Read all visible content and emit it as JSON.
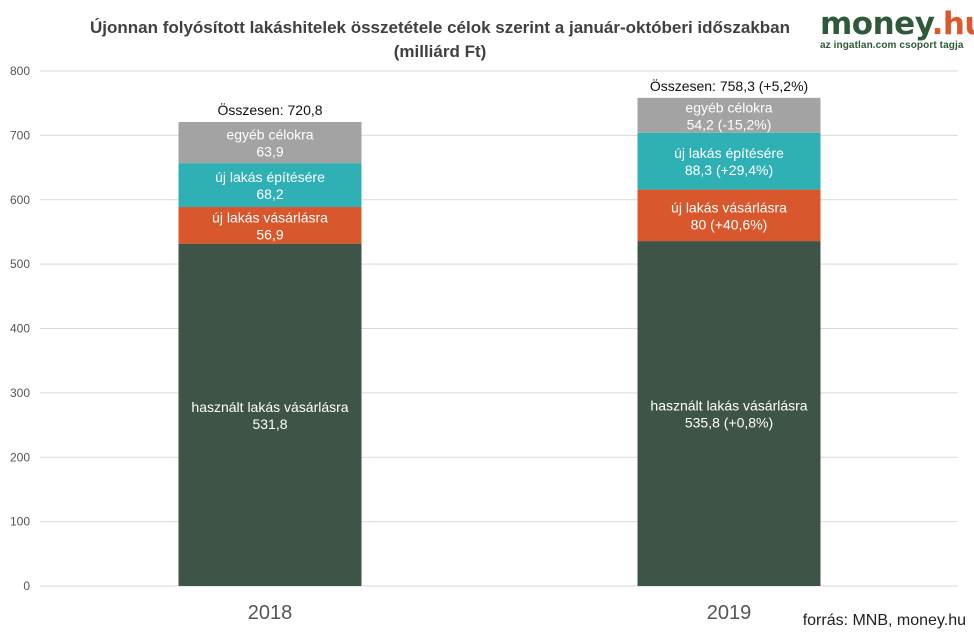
{
  "title_line1": "Újonnan folyósított lakáshitelek összetétele célok szerint a január-októberi időszakban",
  "title_line2": "(milliárd Ft)",
  "logo": {
    "main": "money",
    "suffix": ".hu",
    "tagline": "az ingatlan.com csoport tagja"
  },
  "source": "forrás: MNB, money.hu",
  "colors": {
    "hasznalt": "#3e5446",
    "uj_vasarlas": "#d9572c",
    "uj_epites": "#2fb0b5",
    "egyeb": "#a3a3a3",
    "grid": "#d9d9d9"
  },
  "chart_data": {
    "type": "bar",
    "stacked": true,
    "title": "Újonnan folyósított lakáshitelek összetétele célok szerint a január-októberi időszakban (milliárd Ft)",
    "categories": [
      "2018",
      "2019"
    ],
    "ylim": [
      0,
      800
    ],
    "yticks": [
      "0",
      "100",
      "200",
      "300",
      "400",
      "500",
      "600",
      "700",
      "800"
    ],
    "grid": true,
    "series": [
      {
        "name": "használt lakás vásárlásra",
        "color_key": "hasznalt",
        "values": [
          531.8,
          535.8
        ],
        "labels": [
          "531,8",
          "535,8 (+0,8%)"
        ]
      },
      {
        "name": "új lakás vásárlásra",
        "color_key": "uj_vasarlas",
        "values": [
          56.9,
          80
        ],
        "labels": [
          "56,9",
          "80 (+40,6%)"
        ]
      },
      {
        "name": "új lakás építésére",
        "color_key": "uj_epites",
        "values": [
          68.2,
          88.3
        ],
        "labels": [
          "68,2",
          "88,3 (+29,4%)"
        ]
      },
      {
        "name": "egyéb célokra",
        "color_key": "egyeb",
        "values": [
          63.9,
          54.2
        ],
        "labels": [
          "63,9",
          "54,2 (-15,2%)"
        ]
      }
    ],
    "totals": [
      720.8,
      758.3
    ],
    "total_labels": [
      "Összesen: 720,8",
      "Összesen: 758,3 (+5,2%)"
    ]
  }
}
